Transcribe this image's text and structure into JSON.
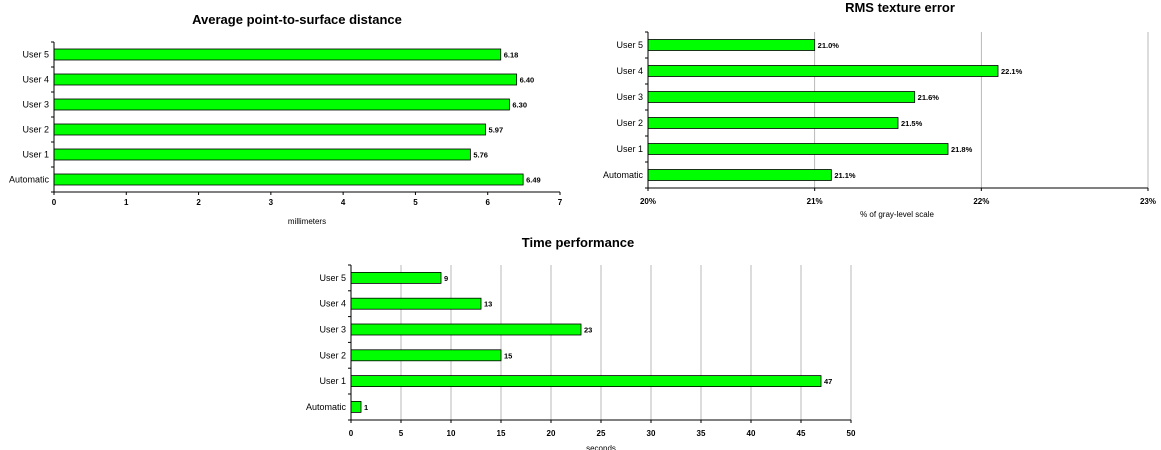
{
  "chart_data": [
    {
      "type": "bar",
      "orientation": "horizontal",
      "title": "Average point-to-surface distance",
      "xlabel": "millimeters",
      "ylabel": "",
      "categories": [
        "User 5",
        "User 4",
        "User 3",
        "User 2",
        "User 1",
        "Automatic"
      ],
      "values": [
        6.18,
        6.4,
        6.3,
        5.97,
        5.76,
        6.49
      ],
      "value_labels": [
        "6.18",
        "6.40",
        "6.30",
        "5.97",
        "5.76",
        "6.49"
      ],
      "xlim": [
        0,
        7
      ],
      "xticks": [
        "0",
        "1",
        "2",
        "3",
        "4",
        "5",
        "6",
        "7"
      ],
      "grid": false,
      "bar_color": "#00ff00"
    },
    {
      "type": "bar",
      "orientation": "horizontal",
      "title": "RMS texture error",
      "xlabel": "% of gray-level scale",
      "ylabel": "",
      "categories": [
        "User 5",
        "User 4",
        "User 3",
        "User 2",
        "User 1",
        "Automatic"
      ],
      "values": [
        21.0,
        22.1,
        21.6,
        21.5,
        21.8,
        21.1
      ],
      "value_labels": [
        "21.0%",
        "22.1%",
        "21.6%",
        "21.5%",
        "21.8%",
        "21.1%"
      ],
      "xlim": [
        20,
        23
      ],
      "xticks": [
        "20%",
        "21%",
        "22%",
        "23%"
      ],
      "grid": true,
      "bar_color": "#00ff00"
    },
    {
      "type": "bar",
      "orientation": "horizontal",
      "title": "Time performance",
      "xlabel": "seconds",
      "ylabel": "",
      "categories": [
        "User 5",
        "User 4",
        "User 3",
        "User 2",
        "User 1",
        "Automatic"
      ],
      "values": [
        9,
        13,
        23,
        15,
        47,
        1
      ],
      "value_labels": [
        "9",
        "13",
        "23",
        "15",
        "47",
        "1"
      ],
      "xlim": [
        0,
        50
      ],
      "xticks": [
        "0",
        "5",
        "10",
        "15",
        "20",
        "25",
        "30",
        "35",
        "40",
        "45",
        "50"
      ],
      "grid": true,
      "bar_color": "#00ff00"
    }
  ]
}
